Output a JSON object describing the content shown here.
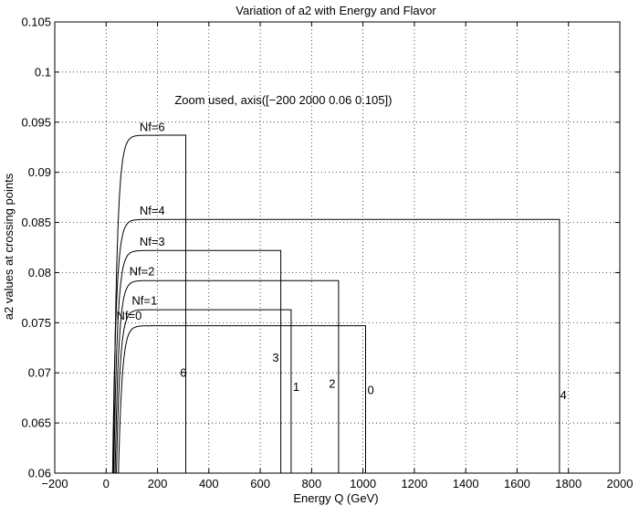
{
  "chart_data": {
    "type": "line",
    "title": "Variation of a2 with Energy and Flavor",
    "xlabel": "Energy Q (GeV)",
    "ylabel": "a2 values at crossing points",
    "xlim": [
      -200,
      2000
    ],
    "ylim": [
      0.06,
      0.105
    ],
    "xticks": [
      -200,
      0,
      200,
      400,
      600,
      800,
      1000,
      1200,
      1400,
      1600,
      1800,
      2000
    ],
    "yticks": [
      0.06,
      0.065,
      0.07,
      0.075,
      0.08,
      0.085,
      0.09,
      0.095,
      0.1,
      0.105
    ],
    "xtick_labels": [
      "−200",
      "0",
      "200",
      "400",
      "600",
      "800",
      "1000",
      "1200",
      "1400",
      "1600",
      "1800",
      "2000"
    ],
    "ytick_labels": [
      "0.06",
      "0.065",
      "0.07",
      "0.075",
      "0.08",
      "0.085",
      "0.09",
      "0.095",
      "0.1",
      "0.105"
    ],
    "grid": true,
    "annotation": "Zoom used, axis([−200 2000  0.06  0.105])",
    "annotation_pos": [
      690,
      0.0968
    ],
    "series": [
      {
        "name": "Nf=0",
        "label": "Nf=0",
        "start_x": 48,
        "end_x": 1010,
        "plateau": 0.0747,
        "k": 14,
        "label_pos": [
          40,
          0.0753
        ],
        "end_label": "0",
        "end_label_pos": [
          1030,
          0.0679
        ]
      },
      {
        "name": "Nf=1",
        "label": "Nf=1",
        "start_x": 40,
        "end_x": 720,
        "plateau": 0.0763,
        "k": 14,
        "label_pos": [
          100,
          0.0768
        ],
        "end_label": "1",
        "end_label_pos": [
          740,
          0.0682
        ]
      },
      {
        "name": "Nf=2",
        "label": "Nf=2",
        "start_x": 35,
        "end_x": 905,
        "plateau": 0.0792,
        "k": 14,
        "label_pos": [
          90,
          0.0797
        ],
        "end_label": "2",
        "end_label_pos": [
          880,
          0.0685
        ]
      },
      {
        "name": "Nf=3",
        "label": "Nf=3",
        "start_x": 30,
        "end_x": 680,
        "plateau": 0.0822,
        "k": 14,
        "label_pos": [
          130,
          0.0827
        ],
        "end_label": "3",
        "end_label_pos": [
          660,
          0.0711
        ]
      },
      {
        "name": "Nf=4",
        "label": "Nf=4",
        "start_x": 25,
        "end_x": 1765,
        "plateau": 0.0853,
        "k": 14,
        "label_pos": [
          130,
          0.0858
        ],
        "end_label": "4",
        "end_label_pos": [
          1780,
          0.0674
        ]
      },
      {
        "name": "Nf=6",
        "label": "Nf=6",
        "start_x": 28,
        "end_x": 310,
        "plateau": 0.0937,
        "k": 14,
        "label_pos": [
          130,
          0.0941
        ],
        "end_label": "6",
        "end_label_pos": [
          300,
          0.0696
        ]
      }
    ]
  }
}
